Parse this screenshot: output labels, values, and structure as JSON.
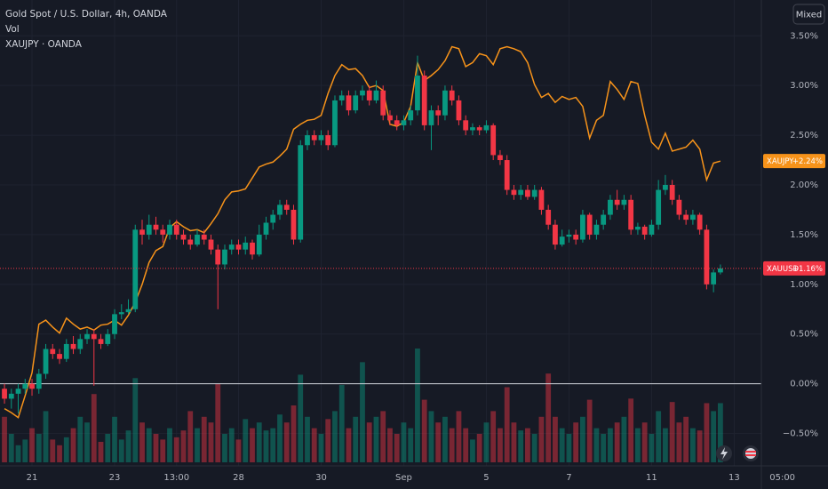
{
  "chart_data": {
    "type": "candlestick",
    "title": "Gold Spot / U.S. Dollar, 4h, OANDA",
    "scale_mode": "Mixed",
    "grid": true,
    "baseline": 0,
    "xlim": [
      -0.65,
      109.95
    ],
    "xticks": [
      {
        "value": 4,
        "label": "21"
      },
      {
        "value": 16,
        "label": "23"
      },
      {
        "value": 25,
        "label": "13:00"
      },
      {
        "value": 34,
        "label": "28"
      },
      {
        "value": 46,
        "label": "30"
      },
      {
        "value": 58,
        "label": "Sep"
      },
      {
        "value": 70,
        "label": "5"
      },
      {
        "value": 82,
        "label": "7"
      },
      {
        "value": 94,
        "label": "11"
      },
      {
        "value": 106,
        "label": "13"
      },
      {
        "value": 113,
        "label": "05:00"
      }
    ],
    "ylim": [
      -0.79,
      3.86
    ],
    "yticks": [
      {
        "value": -0.5,
        "label": "−0.50%"
      },
      {
        "value": 0,
        "label": "0.00%"
      },
      {
        "value": 0.5,
        "label": "0.50%"
      },
      {
        "value": 1,
        "label": "1.00%"
      },
      {
        "value": 1.5,
        "label": "1.50%"
      },
      {
        "value": 2,
        "label": "2.00%"
      },
      {
        "value": 2.5,
        "label": "2.50%"
      },
      {
        "value": 3,
        "label": "3.00%"
      },
      {
        "value": 3.5,
        "label": "3.50%"
      }
    ],
    "candles": {
      "name": "XAUUSD",
      "up_color": "#089981",
      "down_color": "#f23645",
      "last_label": "+1.16%",
      "ohlc": [
        [
          -0.05,
          0.0,
          -0.2,
          -0.15
        ],
        [
          -0.15,
          -0.05,
          -0.25,
          -0.1
        ],
        [
          -0.1,
          0.0,
          -0.3,
          -0.05
        ],
        [
          -0.05,
          0.05,
          -0.1,
          0.0
        ],
        [
          0.0,
          0.05,
          -0.12,
          -0.05
        ],
        [
          -0.05,
          0.15,
          -0.1,
          0.1
        ],
        [
          0.1,
          0.4,
          0.05,
          0.35
        ],
        [
          0.35,
          0.4,
          0.25,
          0.3
        ],
        [
          0.3,
          0.35,
          0.2,
          0.25
        ],
        [
          0.25,
          0.45,
          0.22,
          0.4
        ],
        [
          0.4,
          0.48,
          0.3,
          0.35
        ],
        [
          0.35,
          0.5,
          0.3,
          0.45
        ],
        [
          0.45,
          0.55,
          0.4,
          0.5
        ],
        [
          0.5,
          0.55,
          -0.02,
          0.45
        ],
        [
          0.45,
          0.5,
          0.35,
          0.4
        ],
        [
          0.4,
          0.55,
          0.38,
          0.5
        ],
        [
          0.5,
          0.75,
          0.45,
          0.7
        ],
        [
          0.7,
          0.8,
          0.65,
          0.72
        ],
        [
          0.72,
          0.85,
          0.7,
          0.75
        ],
        [
          0.75,
          1.6,
          0.72,
          1.55
        ],
        [
          1.55,
          1.65,
          1.4,
          1.5
        ],
        [
          1.5,
          1.7,
          1.45,
          1.6
        ],
        [
          1.6,
          1.68,
          1.5,
          1.55
        ],
        [
          1.55,
          1.6,
          1.42,
          1.5
        ],
        [
          1.5,
          1.65,
          1.45,
          1.6
        ],
        [
          1.6,
          1.65,
          1.45,
          1.5
        ],
        [
          1.5,
          1.55,
          1.4,
          1.45
        ],
        [
          1.45,
          1.5,
          1.35,
          1.4
        ],
        [
          1.4,
          1.55,
          1.38,
          1.5
        ],
        [
          1.5,
          1.55,
          1.4,
          1.45
        ],
        [
          1.45,
          1.5,
          1.3,
          1.35
        ],
        [
          1.35,
          1.4,
          0.75,
          1.2
        ],
        [
          1.2,
          1.4,
          1.15,
          1.35
        ],
        [
          1.35,
          1.45,
          1.3,
          1.4
        ],
        [
          1.4,
          1.45,
          1.3,
          1.35
        ],
        [
          1.35,
          1.48,
          1.3,
          1.42
        ],
        [
          1.42,
          1.45,
          1.25,
          1.3
        ],
        [
          1.3,
          1.6,
          1.28,
          1.5
        ],
        [
          1.5,
          1.68,
          1.45,
          1.62
        ],
        [
          1.62,
          1.75,
          1.55,
          1.7
        ],
        [
          1.7,
          1.85,
          1.65,
          1.8
        ],
        [
          1.8,
          1.85,
          1.7,
          1.75
        ],
        [
          1.75,
          1.8,
          1.4,
          1.45
        ],
        [
          1.45,
          2.45,
          1.42,
          2.4
        ],
        [
          2.4,
          2.55,
          2.35,
          2.5
        ],
        [
          2.5,
          2.55,
          2.4,
          2.45
        ],
        [
          2.45,
          2.55,
          2.4,
          2.5
        ],
        [
          2.5,
          2.55,
          2.35,
          2.4
        ],
        [
          2.4,
          2.9,
          2.38,
          2.85
        ],
        [
          2.85,
          2.95,
          2.8,
          2.9
        ],
        [
          2.9,
          2.95,
          2.7,
          2.75
        ],
        [
          2.75,
          2.95,
          2.72,
          2.9
        ],
        [
          2.9,
          3.0,
          2.85,
          2.95
        ],
        [
          2.95,
          3.0,
          2.8,
          2.85
        ],
        [
          2.85,
          3.05,
          2.82,
          2.95
        ],
        [
          2.95,
          3.0,
          2.65,
          2.7
        ],
        [
          2.7,
          2.75,
          2.6,
          2.65
        ],
        [
          2.65,
          2.7,
          2.55,
          2.6
        ],
        [
          2.6,
          2.7,
          2.55,
          2.65
        ],
        [
          2.65,
          2.8,
          2.6,
          2.75
        ],
        [
          2.75,
          3.3,
          2.7,
          3.1
        ],
        [
          3.1,
          3.15,
          2.55,
          2.6
        ],
        [
          2.6,
          2.8,
          2.35,
          2.75
        ],
        [
          2.75,
          2.8,
          2.6,
          2.7
        ],
        [
          2.7,
          3.0,
          2.65,
          2.95
        ],
        [
          2.95,
          3.0,
          2.8,
          2.85
        ],
        [
          2.85,
          2.9,
          2.6,
          2.65
        ],
        [
          2.65,
          2.7,
          2.5,
          2.55
        ],
        [
          2.55,
          2.62,
          2.5,
          2.58
        ],
        [
          2.58,
          2.6,
          2.5,
          2.55
        ],
        [
          2.55,
          2.65,
          2.52,
          2.6
        ],
        [
          2.6,
          2.62,
          2.25,
          2.3
        ],
        [
          2.3,
          2.35,
          2.2,
          2.25
        ],
        [
          2.25,
          2.3,
          1.9,
          1.95
        ],
        [
          1.95,
          2.0,
          1.85,
          1.9
        ],
        [
          1.9,
          2.0,
          1.85,
          1.95
        ],
        [
          1.95,
          2.0,
          1.85,
          1.88
        ],
        [
          1.88,
          2.0,
          1.85,
          1.95
        ],
        [
          1.95,
          1.98,
          1.7,
          1.75
        ],
        [
          1.75,
          1.8,
          1.55,
          1.6
        ],
        [
          1.6,
          1.65,
          1.35,
          1.4
        ],
        [
          1.4,
          1.55,
          1.38,
          1.48
        ],
        [
          1.48,
          1.55,
          1.42,
          1.5
        ],
        [
          1.5,
          1.55,
          1.4,
          1.45
        ],
        [
          1.45,
          1.75,
          1.42,
          1.7
        ],
        [
          1.7,
          1.72,
          1.45,
          1.5
        ],
        [
          1.5,
          1.65,
          1.45,
          1.6
        ],
        [
          1.6,
          1.75,
          1.55,
          1.7
        ],
        [
          1.7,
          1.9,
          1.65,
          1.85
        ],
        [
          1.85,
          1.95,
          1.75,
          1.8
        ],
        [
          1.8,
          1.9,
          1.75,
          1.85
        ],
        [
          1.85,
          1.9,
          1.5,
          1.55
        ],
        [
          1.55,
          1.62,
          1.5,
          1.58
        ],
        [
          1.58,
          1.6,
          1.45,
          1.5
        ],
        [
          1.5,
          1.65,
          1.48,
          1.6
        ],
        [
          1.6,
          2.05,
          1.55,
          1.95
        ],
        [
          1.95,
          2.1,
          1.9,
          2.0
        ],
        [
          2.0,
          2.05,
          1.8,
          1.85
        ],
        [
          1.85,
          1.9,
          1.65,
          1.7
        ],
        [
          1.7,
          1.75,
          1.6,
          1.65
        ],
        [
          1.65,
          1.75,
          1.6,
          1.7
        ],
        [
          1.7,
          1.72,
          1.5,
          1.55
        ],
        [
          1.55,
          1.6,
          0.95,
          1.0
        ],
        [
          1.0,
          1.15,
          0.92,
          1.12
        ],
        [
          1.12,
          1.2,
          1.1,
          1.16
        ]
      ]
    },
    "volume": {
      "name": "Vol",
      "vlim": [
        0,
        100
      ],
      "values": [
        40,
        25,
        15,
        20,
        30,
        25,
        45,
        20,
        15,
        22,
        30,
        40,
        35,
        60,
        18,
        25,
        40,
        20,
        28,
        74,
        35,
        30,
        25,
        20,
        30,
        22,
        28,
        45,
        30,
        40,
        35,
        69,
        25,
        30,
        20,
        38,
        30,
        35,
        28,
        30,
        42,
        35,
        50,
        77,
        40,
        30,
        25,
        38,
        45,
        68,
        30,
        40,
        88,
        35,
        40,
        45,
        30,
        25,
        35,
        30,
        100,
        55,
        45,
        35,
        40,
        30,
        45,
        30,
        20,
        25,
        35,
        45,
        30,
        66,
        35,
        28,
        30,
        25,
        40,
        78,
        40,
        30,
        25,
        35,
        40,
        55,
        30,
        25,
        30,
        35,
        40,
        56,
        30,
        35,
        25,
        45,
        30,
        53,
        35,
        40,
        30,
        28,
        52,
        45,
        52
      ]
    },
    "compare": {
      "name": "XAUJPY",
      "legend": "XAUJPY · OANDA",
      "color": "#f7931a",
      "last_label": "+2.24%",
      "values": [
        -0.25,
        -0.29,
        -0.34,
        -0.12,
        0.11,
        0.6,
        0.64,
        0.57,
        0.51,
        0.66,
        0.6,
        0.55,
        0.57,
        0.54,
        0.59,
        0.6,
        0.64,
        0.59,
        0.69,
        0.82,
        1.0,
        1.22,
        1.34,
        1.38,
        1.57,
        1.63,
        1.58,
        1.54,
        1.55,
        1.52,
        1.61,
        1.71,
        1.85,
        1.93,
        1.94,
        1.96,
        2.07,
        2.18,
        2.21,
        2.23,
        2.29,
        2.36,
        2.56,
        2.61,
        2.65,
        2.66,
        2.7,
        2.92,
        3.1,
        3.21,
        3.16,
        3.17,
        3.1,
        2.98,
        3.0,
        2.95,
        2.61,
        2.59,
        2.63,
        2.79,
        3.23,
        3.05,
        3.1,
        3.16,
        3.25,
        3.39,
        3.37,
        3.19,
        3.23,
        3.32,
        3.3,
        3.21,
        3.37,
        3.39,
        3.37,
        3.34,
        3.23,
        3.01,
        2.88,
        2.92,
        2.83,
        2.89,
        2.86,
        2.88,
        2.79,
        2.47,
        2.65,
        2.7,
        3.04,
        2.96,
        2.86,
        3.04,
        3.02,
        2.7,
        2.43,
        2.36,
        2.52,
        2.34,
        2.36,
        2.38,
        2.45,
        2.36,
        2.05,
        2.22,
        2.24
      ]
    }
  }
}
